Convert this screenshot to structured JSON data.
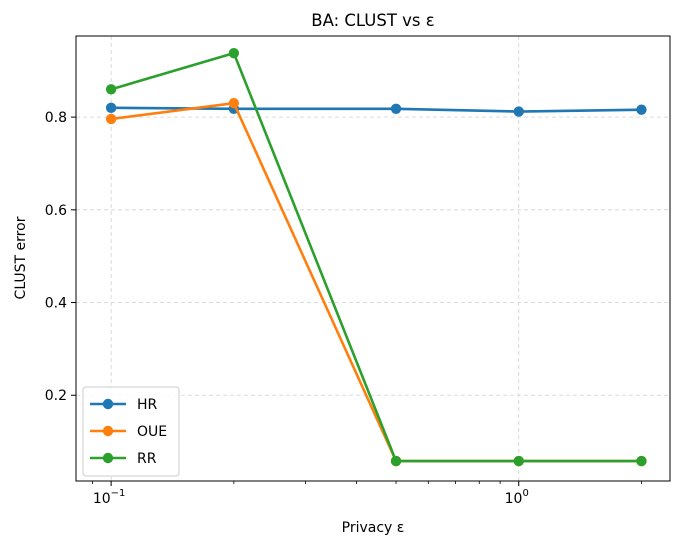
{
  "chart_data": {
    "type": "line",
    "title": "BA: CLUST vs ε",
    "xlabel": "Privacy ε",
    "ylabel": "CLUST error",
    "xscale": "log",
    "x": [
      0.1,
      0.2,
      0.5,
      1.0,
      2.0
    ],
    "xlim": [
      0.082,
      2.35
    ],
    "ylim": [
      0.015,
      0.975
    ],
    "x_ticks": [
      {
        "value": 0.1,
        "base": "10",
        "exp": "−1"
      },
      {
        "value": 1.0,
        "base": "10",
        "exp": "0"
      }
    ],
    "y_ticks": [
      {
        "value": 0.2,
        "label": "0.2"
      },
      {
        "value": 0.4,
        "label": "0.4"
      },
      {
        "value": 0.6,
        "label": "0.6"
      },
      {
        "value": 0.8,
        "label": "0.8"
      }
    ],
    "grid": true,
    "legend_position": "lower-left",
    "series": [
      {
        "name": "HR",
        "color": "#1f77b4",
        "values": [
          0.82,
          0.818,
          0.818,
          0.812,
          0.816
        ]
      },
      {
        "name": "OUE",
        "color": "#ff7f0e",
        "values": [
          0.796,
          0.83,
          0.058,
          0.058,
          0.058
        ]
      },
      {
        "name": "RR",
        "color": "#2ca02c",
        "values": [
          0.86,
          0.938,
          0.058,
          0.058,
          0.058
        ]
      }
    ]
  }
}
